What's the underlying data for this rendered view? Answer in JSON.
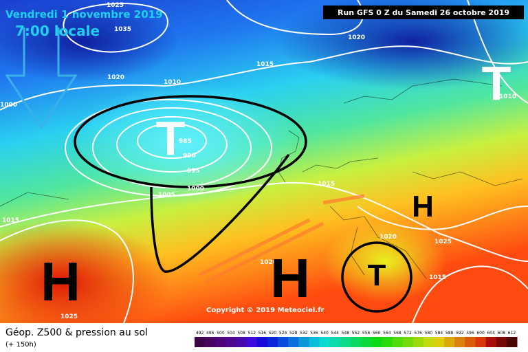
{
  "header": {
    "date": "Vendredi 1 novembre 2019",
    "time": "7:00 locale",
    "run": "Run GFS 0 Z du Samedi 26 octobre 2019"
  },
  "isobar_labels": [
    "1025",
    "1035",
    "1020",
    "1010",
    "1015",
    "1020",
    "1000",
    "985",
    "990",
    "995",
    "1000",
    "1005",
    "1015",
    "1015",
    "1020",
    "1025",
    "1015",
    "1020",
    "1010",
    "1025"
  ],
  "pressure_systems": [
    "T",
    "T",
    "H",
    "H",
    "H",
    "T"
  ],
  "copyright": "Copyright © 2019 Meteociel.fr",
  "legend": {
    "title": "Géop. Z500 & pression au sol",
    "lead": "(+ 150h)",
    "scale": [
      492,
      496,
      500,
      504,
      508,
      512,
      516,
      520,
      524,
      528,
      532,
      536,
      540,
      544,
      548,
      552,
      556,
      560,
      564,
      568,
      572,
      576,
      580,
      584,
      588,
      592,
      596,
      600,
      604,
      608,
      612
    ]
  }
}
